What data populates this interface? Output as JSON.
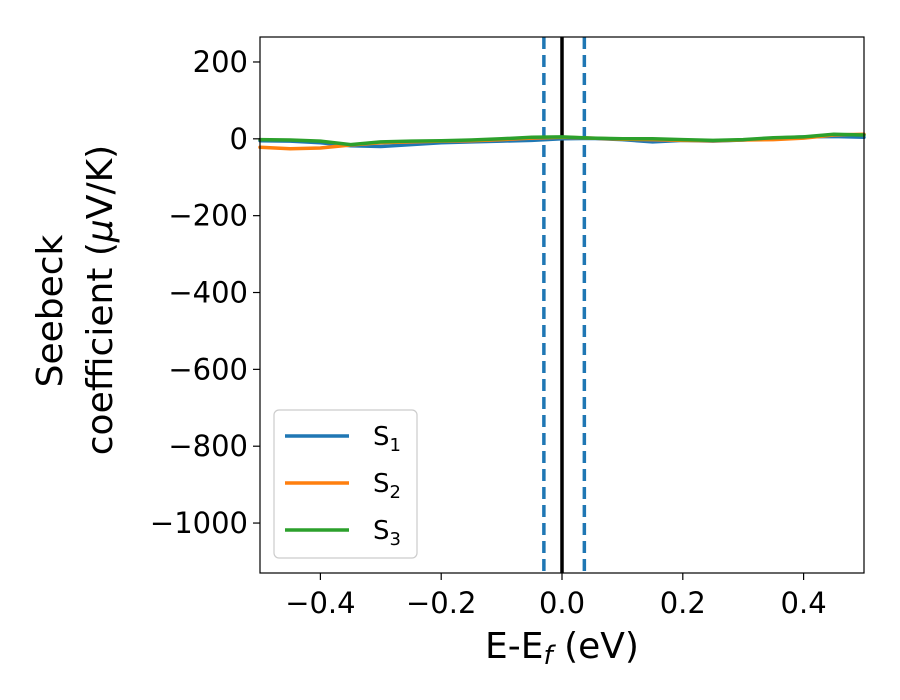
{
  "chart_data": {
    "type": "line",
    "xlabel": "E-E",
    "xlabel_sub": "f",
    "xlabel_unit": " (eV)",
    "ylabel_line1": "Seebeck",
    "ylabel_line2": "coefficient  (",
    "ylabel_mu": "μ",
    "ylabel_unit": "V/K)",
    "xlim": [
      -0.5,
      0.5
    ],
    "ylim": [
      -1130,
      265
    ],
    "xticks": [
      -0.4,
      -0.2,
      0.0,
      0.2,
      0.4
    ],
    "xtick_labels": [
      "−0.4",
      "−0.2",
      "0.0",
      "0.2",
      "0.4"
    ],
    "yticks": [
      200,
      0,
      -200,
      -400,
      -600,
      -800,
      -1000
    ],
    "ytick_labels": [
      "200",
      "0",
      "−200",
      "−400",
      "−600",
      "−800",
      "−1000"
    ],
    "grid": false,
    "legend_position": "lower-left",
    "vlines": [
      {
        "x": 0.0,
        "style": "solid",
        "color": "#000000"
      },
      {
        "x": -0.03,
        "style": "dashed",
        "color": "#1f77b4"
      },
      {
        "x": 0.037,
        "style": "dashed",
        "color": "#1f77b4"
      }
    ],
    "series": [
      {
        "name": "S",
        "sub": "1",
        "color": "#1f77b4",
        "x": [
          -0.5,
          -0.45,
          -0.4,
          -0.35,
          -0.3,
          -0.25,
          -0.2,
          -0.15,
          -0.1,
          -0.05,
          0.0,
          0.05,
          0.1,
          0.15,
          0.2,
          0.25,
          0.3,
          0.35,
          0.4,
          0.45,
          0.5
        ],
        "y": [
          -5,
          -6,
          -10,
          -18,
          -20,
          -15,
          -10,
          -8,
          -6,
          -4,
          0,
          1,
          -2,
          -8,
          -4,
          -6,
          -3,
          2,
          5,
          6,
          4
        ]
      },
      {
        "name": "S",
        "sub": "2",
        "color": "#ff7f0e",
        "x": [
          -0.5,
          -0.45,
          -0.4,
          -0.35,
          -0.3,
          -0.25,
          -0.2,
          -0.15,
          -0.1,
          -0.05,
          0.0,
          0.05,
          0.1,
          0.15,
          0.2,
          0.25,
          0.3,
          0.35,
          0.4,
          0.45,
          0.5
        ],
        "y": [
          -22,
          -26,
          -24,
          -16,
          -10,
          -8,
          -6,
          -5,
          -2,
          2,
          4,
          2,
          -1,
          -2,
          -4,
          -5,
          -3,
          -2,
          2,
          10,
          12
        ]
      },
      {
        "name": "S",
        "sub": "3",
        "color": "#2ca02c",
        "x": [
          -0.5,
          -0.45,
          -0.4,
          -0.35,
          -0.3,
          -0.25,
          -0.2,
          -0.15,
          -0.1,
          -0.05,
          0.0,
          0.05,
          0.1,
          0.15,
          0.2,
          0.25,
          0.3,
          0.35,
          0.4,
          0.45,
          0.5
        ],
        "y": [
          -2,
          -3,
          -6,
          -15,
          -8,
          -6,
          -5,
          -3,
          0,
          4,
          5,
          2,
          0,
          0,
          -2,
          -4,
          -2,
          3,
          5,
          12,
          10
        ]
      }
    ]
  }
}
